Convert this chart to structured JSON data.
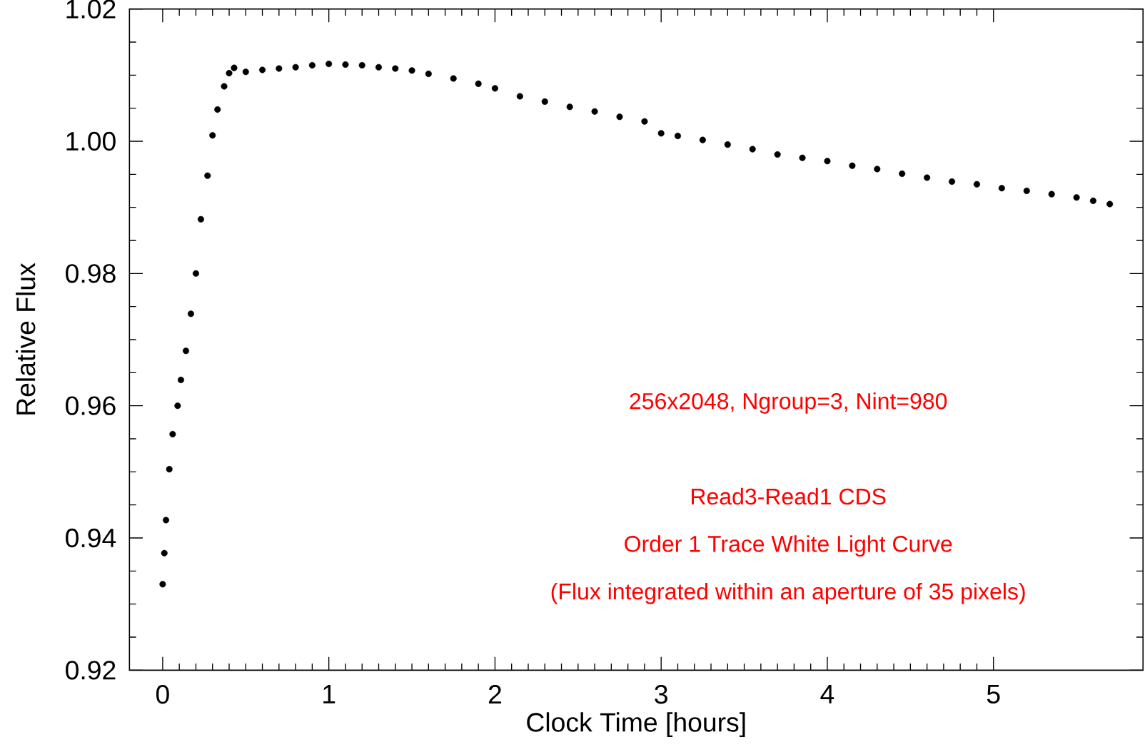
{
  "chart_data": {
    "type": "scatter",
    "xlabel": "Clock Time [hours]",
    "ylabel": "Relative Flux",
    "x": [
      0.0,
      0.01,
      0.02,
      0.04,
      0.06,
      0.09,
      0.11,
      0.14,
      0.17,
      0.2,
      0.23,
      0.27,
      0.3,
      0.33,
      0.37,
      0.4,
      0.43,
      0.5,
      0.6,
      0.7,
      0.8,
      0.9,
      1.0,
      1.1,
      1.2,
      1.3,
      1.4,
      1.5,
      1.6,
      1.75,
      1.9,
      2.0,
      2.15,
      2.3,
      2.45,
      2.6,
      2.75,
      2.9,
      3.0,
      3.1,
      3.25,
      3.4,
      3.55,
      3.7,
      3.85,
      4.0,
      4.15,
      4.3,
      4.45,
      4.6,
      4.75,
      4.9,
      5.05,
      5.2,
      5.35,
      5.5,
      5.6,
      5.7
    ],
    "series": [
      {
        "color": "#000000",
        "values": [
          0.933,
          0.9377,
          0.9427,
          0.9504,
          0.9557,
          0.96,
          0.9639,
          0.9683,
          0.9739,
          0.98,
          0.9882,
          0.9948,
          1.0009,
          1.0048,
          1.0083,
          1.0103,
          1.0111,
          1.0105,
          1.0108,
          1.011,
          1.0112,
          1.0115,
          1.0117,
          1.0116,
          1.0115,
          1.0112,
          1.011,
          1.0107,
          1.0102,
          1.0095,
          1.0087,
          1.008,
          1.0068,
          1.006,
          1.0052,
          1.0045,
          1.0037,
          1.003,
          1.0012,
          1.0008,
          1.0002,
          0.9995,
          0.9988,
          0.998,
          0.9975,
          0.997,
          0.9963,
          0.9958,
          0.9951,
          0.9945,
          0.9939,
          0.9935,
          0.9929,
          0.9925,
          0.992,
          0.9915,
          0.991,
          0.9905
        ]
      }
    ],
    "xlim": [
      -0.2,
      5.9
    ],
    "xticks": [
      0,
      1,
      2,
      3,
      4,
      5
    ],
    "ylim": [
      0.92,
      1.02
    ],
    "yticks": [
      0.92,
      0.94,
      0.96,
      0.98,
      {
        "value": 1.0,
        "label": "1.00"
      },
      1.02
    ],
    "marker": "circle",
    "grid": false,
    "annotations": [
      "256x2048, Ngroup=3, Nint=980",
      "Read3-Read1 CDS",
      "Order 1 Trace White Light Curve",
      "(Flux integrated within an aperture of 35 pixels)"
    ]
  }
}
